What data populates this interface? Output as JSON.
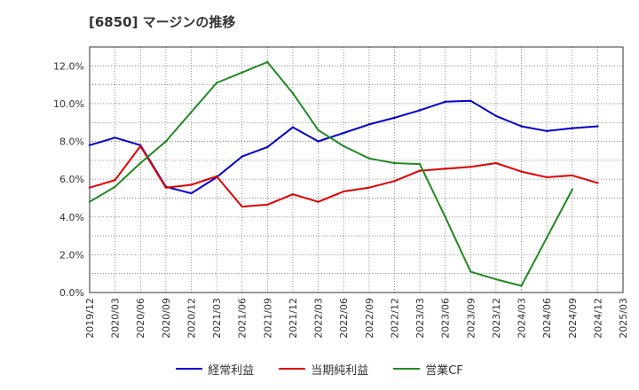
{
  "title": "[6850]  マージンの推移",
  "chart_data": {
    "type": "line",
    "title": "[6850]  マージンの推移",
    "xlabel": "",
    "ylabel": "",
    "ylim": [
      0,
      13
    ],
    "y_ticks": [
      0,
      2,
      4,
      6,
      8,
      10,
      12
    ],
    "y_tick_labels": [
      "0.0%",
      "2.0%",
      "4.0%",
      "6.0%",
      "8.0%",
      "10.0%",
      "12.0%"
    ],
    "grid": true,
    "legend_position": "bottom",
    "categories": [
      "2019/12",
      "2020/03",
      "2020/06",
      "2020/09",
      "2020/12",
      "2021/03",
      "2021/06",
      "2021/09",
      "2021/12",
      "2022/03",
      "2022/06",
      "2022/09",
      "2022/12",
      "2023/03",
      "2023/06",
      "2023/09",
      "2023/12",
      "2024/03",
      "2024/06",
      "2024/09",
      "2024/12",
      "2025/03"
    ],
    "series": [
      {
        "name": "経常利益",
        "color": "#0000cc",
        "values": [
          7.8,
          8.2,
          7.8,
          5.6,
          5.25,
          6.1,
          7.2,
          7.7,
          8.75,
          8.0,
          8.45,
          8.9,
          9.25,
          9.65,
          10.1,
          10.15,
          9.35,
          8.8,
          8.55,
          8.7,
          8.8,
          null
        ]
      },
      {
        "name": "当期純利益",
        "color": "#dd0000",
        "values": [
          5.55,
          5.95,
          7.75,
          5.55,
          5.7,
          6.15,
          4.55,
          4.65,
          5.2,
          4.8,
          5.35,
          5.55,
          5.9,
          6.45,
          6.55,
          6.65,
          6.85,
          6.4,
          6.1,
          6.2,
          5.8,
          null
        ]
      },
      {
        "name": "営業CF",
        "color": "#228822",
        "values": [
          4.8,
          5.6,
          6.85,
          8.0,
          9.55,
          11.1,
          11.65,
          12.2,
          10.55,
          8.6,
          7.75,
          7.1,
          6.85,
          6.8,
          4.0,
          1.1,
          0.7,
          0.35,
          2.9,
          5.45,
          null,
          null
        ]
      }
    ]
  }
}
